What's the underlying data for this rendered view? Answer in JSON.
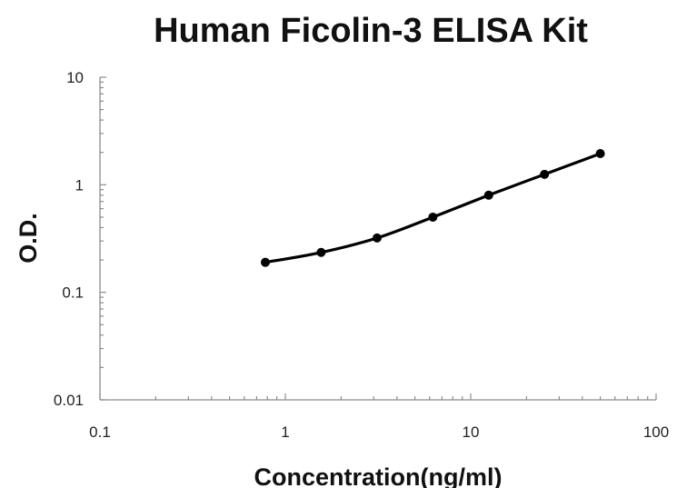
{
  "chart_data": {
    "type": "scatter",
    "title": "Human Ficolin-3 ELISA Kit",
    "xlabel": "Concentration(ng/ml)",
    "ylabel": "O.D.",
    "xscale": "log",
    "yscale": "log",
    "xlim": [
      0.1,
      100
    ],
    "ylim": [
      0.01,
      10
    ],
    "xticks": [
      "0.1",
      "1",
      "10",
      "100"
    ],
    "yticks": [
      "0.01",
      "0.1",
      "1",
      "10"
    ],
    "grid": false,
    "legend": "none",
    "series": [
      {
        "color": "#000000",
        "line": "smooth",
        "x": [
          0.78,
          1.56,
          3.125,
          6.25,
          12.5,
          25,
          50
        ],
        "y": [
          0.19,
          0.235,
          0.32,
          0.5,
          0.8,
          1.25,
          1.95
        ]
      }
    ]
  }
}
